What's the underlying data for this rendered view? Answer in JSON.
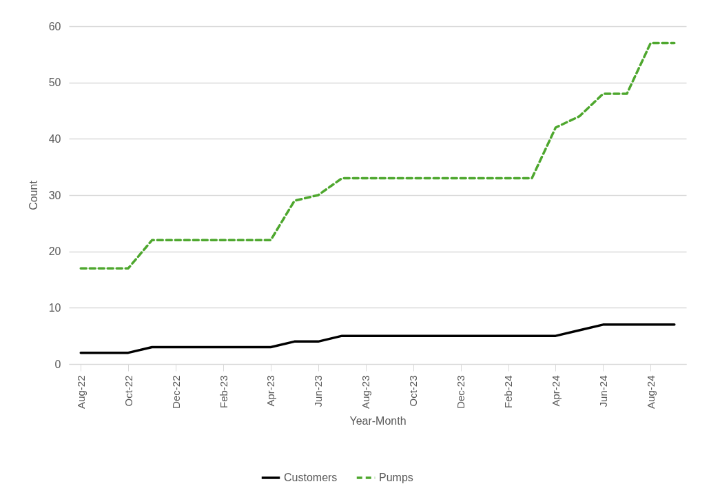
{
  "chart_data": {
    "type": "line",
    "xlabel": "Year-Month",
    "ylabel": "Count",
    "categories": [
      "Aug-22",
      null,
      "Oct-22",
      null,
      "Dec-22",
      null,
      "Feb-23",
      null,
      "Apr-23",
      null,
      "Jun-23",
      null,
      "Aug-23",
      null,
      "Oct-23",
      null,
      "Dec-23",
      null,
      "Feb-24",
      null,
      "Apr-24",
      null,
      "Jun-24",
      null,
      "Aug-24",
      null
    ],
    "series": [
      {
        "name": "Customers",
        "color": "#000000",
        "line_style": "solid",
        "values": [
          2,
          2,
          2,
          3,
          3,
          3,
          3,
          3,
          3,
          4,
          4,
          5,
          5,
          5,
          5,
          5,
          5,
          5,
          5,
          5,
          5,
          6,
          7,
          7,
          7,
          7
        ]
      },
      {
        "name": "Pumps",
        "color": "#4ea72e",
        "line_style": "dashed",
        "values": [
          17,
          17,
          17,
          22,
          22,
          22,
          22,
          22,
          22,
          29,
          30,
          33,
          33,
          33,
          33,
          33,
          33,
          33,
          33,
          33,
          42,
          44,
          48,
          48,
          57,
          57
        ]
      }
    ],
    "ylim": [
      0,
      60
    ],
    "yticks": [
      0,
      10,
      20,
      30,
      40,
      50,
      60
    ],
    "grid": "y",
    "legend": "bottom",
    "marker": "none"
  }
}
